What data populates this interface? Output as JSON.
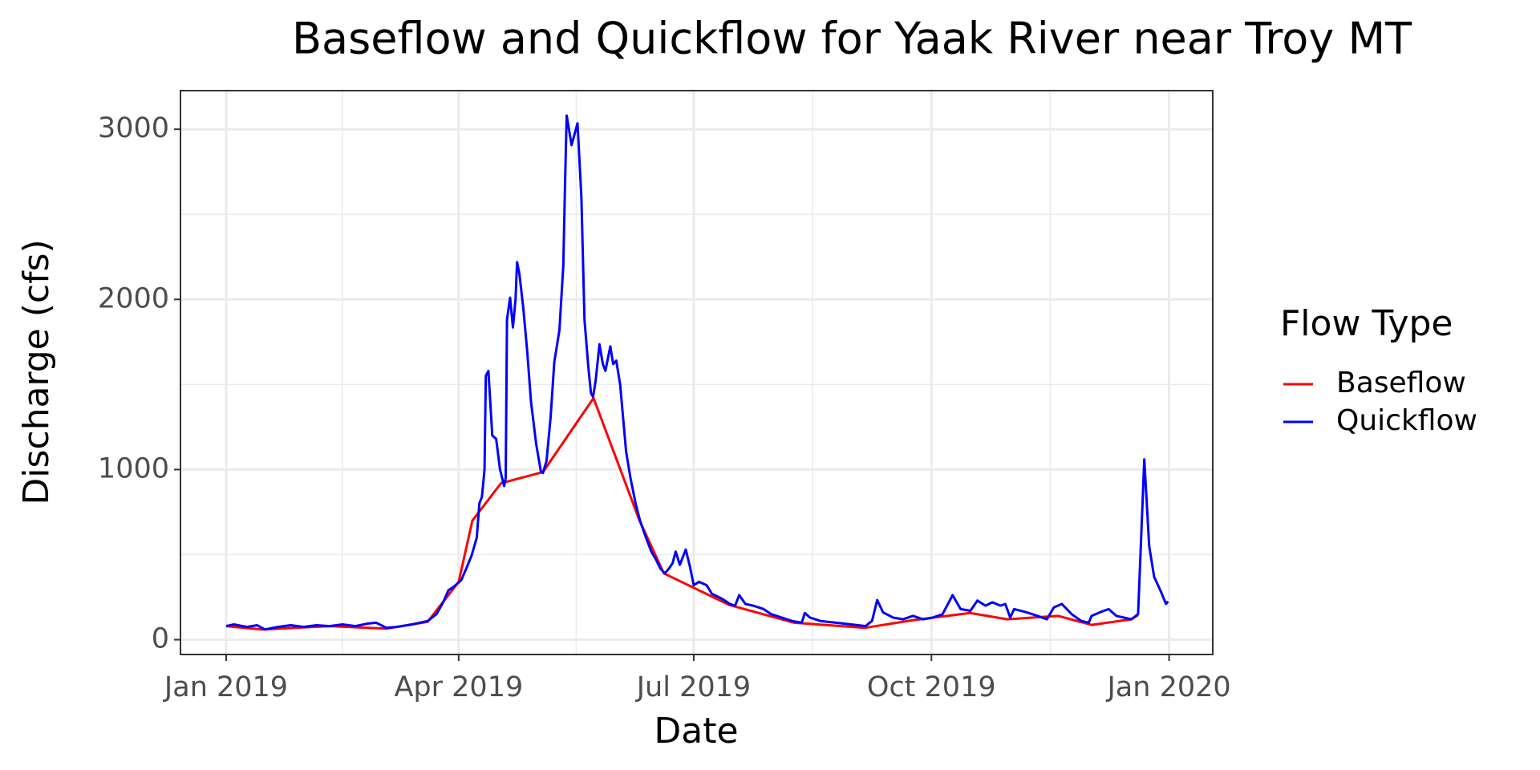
{
  "chart_data": {
    "type": "line",
    "title": "Baseflow and Quickflow for Yaak River near Troy MT",
    "x_label": "Date",
    "y_label": "Discharge (cfs)",
    "legend_title": "Flow Type",
    "legend_position": "right",
    "grid": true,
    "xlim": [
      -17.7,
      381.9
    ],
    "xticks": [
      {
        "value": 0,
        "label": "Jan 2019"
      },
      {
        "value": 90,
        "label": "Apr 2019"
      },
      {
        "value": 181,
        "label": "Jul 2019"
      },
      {
        "value": 273,
        "label": "Oct 2019"
      },
      {
        "value": 365,
        "label": "Jan 2020"
      }
    ],
    "x_minor_grid": [
      45,
      135.5,
      227,
      319
    ],
    "ylim": [
      -87,
      3227
    ],
    "yticks": [
      0,
      1000,
      2000,
      3000
    ],
    "y_minor_grid": [
      500,
      1500,
      2500
    ],
    "series": [
      {
        "name": "Baseflow",
        "color": "#ff0000",
        "x": [
          0,
          14,
          40,
          62,
          78,
          90,
          95.3,
          106.4,
          122.6,
          142.2,
          160,
          169.4,
          194.8,
          219.8,
          247.4,
          266,
          288,
          302.4,
          322,
          335,
          350.4,
          353
        ],
        "values": [
          80,
          60,
          80,
          65,
          105,
          340,
          700,
          920,
          985,
          1420,
          700,
          390,
          204,
          100,
          70,
          115,
          157,
          120,
          140,
          87,
          120,
          145
        ]
      },
      {
        "name": "Quickflow",
        "color": "#0000ff",
        "x": [
          0,
          3,
          8,
          12,
          15,
          20,
          25,
          30,
          35,
          40,
          45,
          50,
          55,
          58,
          62,
          66,
          72,
          78,
          81.4,
          84,
          86,
          88,
          91,
          93,
          95,
          97,
          98,
          99,
          100,
          100.5,
          101.5,
          103,
          104.5,
          106,
          107.6,
          108.2,
          108.7,
          109.9,
          111,
          112,
          112.6,
          113.5,
          115,
          116.5,
          118,
          120,
          121.8,
          122.6,
          124,
          125.6,
          127,
          129,
          130.5,
          131.2,
          131.8,
          133.7,
          136,
          137.5,
          138.7,
          140.2,
          141.2,
          142,
          143,
          144.5,
          145.8,
          146.8,
          148.7,
          149.8,
          151,
          152.5,
          154.8,
          156.5,
          158.5,
          160.2,
          162.5,
          164.5,
          166.4,
          168,
          169.8,
          171.5,
          172.8,
          174,
          175.6,
          177.9,
          179.5,
          181,
          183,
          186,
          188,
          192,
          195,
          197,
          198.6,
          201,
          204,
          208,
          211,
          215,
          219,
          222.8,
          224,
          226,
          230,
          236,
          242,
          247.5,
          250,
          252,
          254.3,
          258.2,
          262,
          265.9,
          269.7,
          273.5,
          277.3,
          281.2,
          284.3,
          288.1,
          290.8,
          293.9,
          296.6,
          299.7,
          301.6,
          303.5,
          305,
          310,
          314,
          317.7,
          320.4,
          323.5,
          327.3,
          331,
          333.9,
          335,
          338.9,
          341.6,
          344.6,
          350.4,
          353,
          355.4,
          357.3,
          359.2,
          361.9,
          363.8,
          364.6
        ],
        "values": [
          80,
          90,
          75,
          85,
          60,
          75,
          85,
          75,
          85,
          80,
          90,
          80,
          95,
          100,
          70,
          75,
          90,
          110,
          150,
          220,
          290,
          310,
          350,
          420,
          495,
          600,
          800,
          840,
          1000,
          1550,
          1580,
          1200,
          1180,
          1000,
          903,
          950,
          1882,
          2010,
          1835,
          2000,
          2219,
          2150,
          1950,
          1700,
          1398,
          1150,
          990,
          980,
          1050,
          1310,
          1631,
          1820,
          2200,
          2700,
          3081,
          2907,
          3035,
          2600,
          1880,
          1600,
          1450,
          1427,
          1520,
          1736,
          1620,
          1580,
          1724,
          1620,
          1640,
          1500,
          1107,
          950,
          800,
          699,
          600,
          520,
          470,
          420,
          390,
          420,
          450,
          518,
          440,
          530,
          430,
          320,
          340,
          320,
          270,
          240,
          210,
          200,
          262,
          210,
          200,
          180,
          150,
          130,
          110,
          100,
          157,
          130,
          110,
          100,
          90,
          80,
          110,
          233,
          160,
          130,
          120,
          140,
          120,
          130,
          150,
          262,
          180,
          170,
          230,
          200,
          220,
          200,
          210,
          130,
          180,
          160,
          140,
          120,
          190,
          210,
          150,
          110,
          100,
          140,
          165,
          180,
          140,
          120,
          150,
          1060,
          550,
          370,
          280,
          210,
          225
        ]
      }
    ]
  }
}
